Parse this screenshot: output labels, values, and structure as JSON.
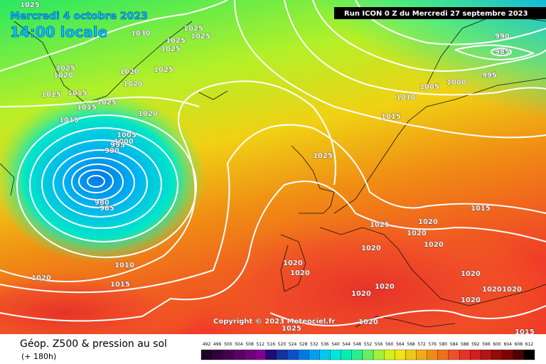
{
  "header": {
    "date": "Mercredi 4 octobre 2023",
    "time": "14:00 locale",
    "run": "Run ICON 0 Z du Mercredi 27 septembre 2023",
    "copyright": "Copyright © 2023 Meteociel.fr"
  },
  "footer": {
    "title": "Géop. Z500 & pression au sol",
    "lead": "(+ 180h)"
  },
  "isobar_labels": [
    "1025",
    "1030",
    "1025",
    "1025",
    "1025",
    "1025",
    "1025",
    "1020",
    "1020",
    "1025",
    "1020",
    "1015",
    "1015",
    "1015",
    "1025",
    "1020",
    "1015",
    "1005",
    "1000",
    "995",
    "990",
    "980",
    "985",
    "1010",
    "1015",
    "1020",
    "1025",
    "990",
    "985",
    "995",
    "1000",
    "1005",
    "1010",
    "1015",
    "1015",
    "1020",
    "1025",
    "1020",
    "1020",
    "1020",
    "1020",
    "1020",
    "1020",
    "1020",
    "1020",
    "1020",
    "1020",
    "1020",
    "1020",
    "1025",
    "1015"
  ],
  "scale": {
    "values": [
      492,
      496,
      500,
      504,
      508,
      512,
      516,
      520,
      524,
      528,
      532,
      536,
      540,
      544,
      548,
      552,
      556,
      560,
      564,
      568,
      572,
      576,
      580,
      584,
      588,
      592,
      596,
      600,
      604,
      608,
      612
    ],
    "colors": [
      "#1e0028",
      "#32003c",
      "#460050",
      "#5a0064",
      "#6e0078",
      "#82008c",
      "#1e0a78",
      "#1432a0",
      "#0a50c8",
      "#0078e6",
      "#00a0f0",
      "#00c8f0",
      "#00e6dc",
      "#00f0b4",
      "#28f08c",
      "#64f064",
      "#a0f03c",
      "#d2f01e",
      "#f0e614",
      "#f0c814",
      "#f0aa14",
      "#f08c14",
      "#f06e1e",
      "#f05028",
      "#e63228",
      "#d21e1e",
      "#b41414",
      "#960a0a",
      "#780505",
      "#500000",
      "#000000"
    ]
  }
}
